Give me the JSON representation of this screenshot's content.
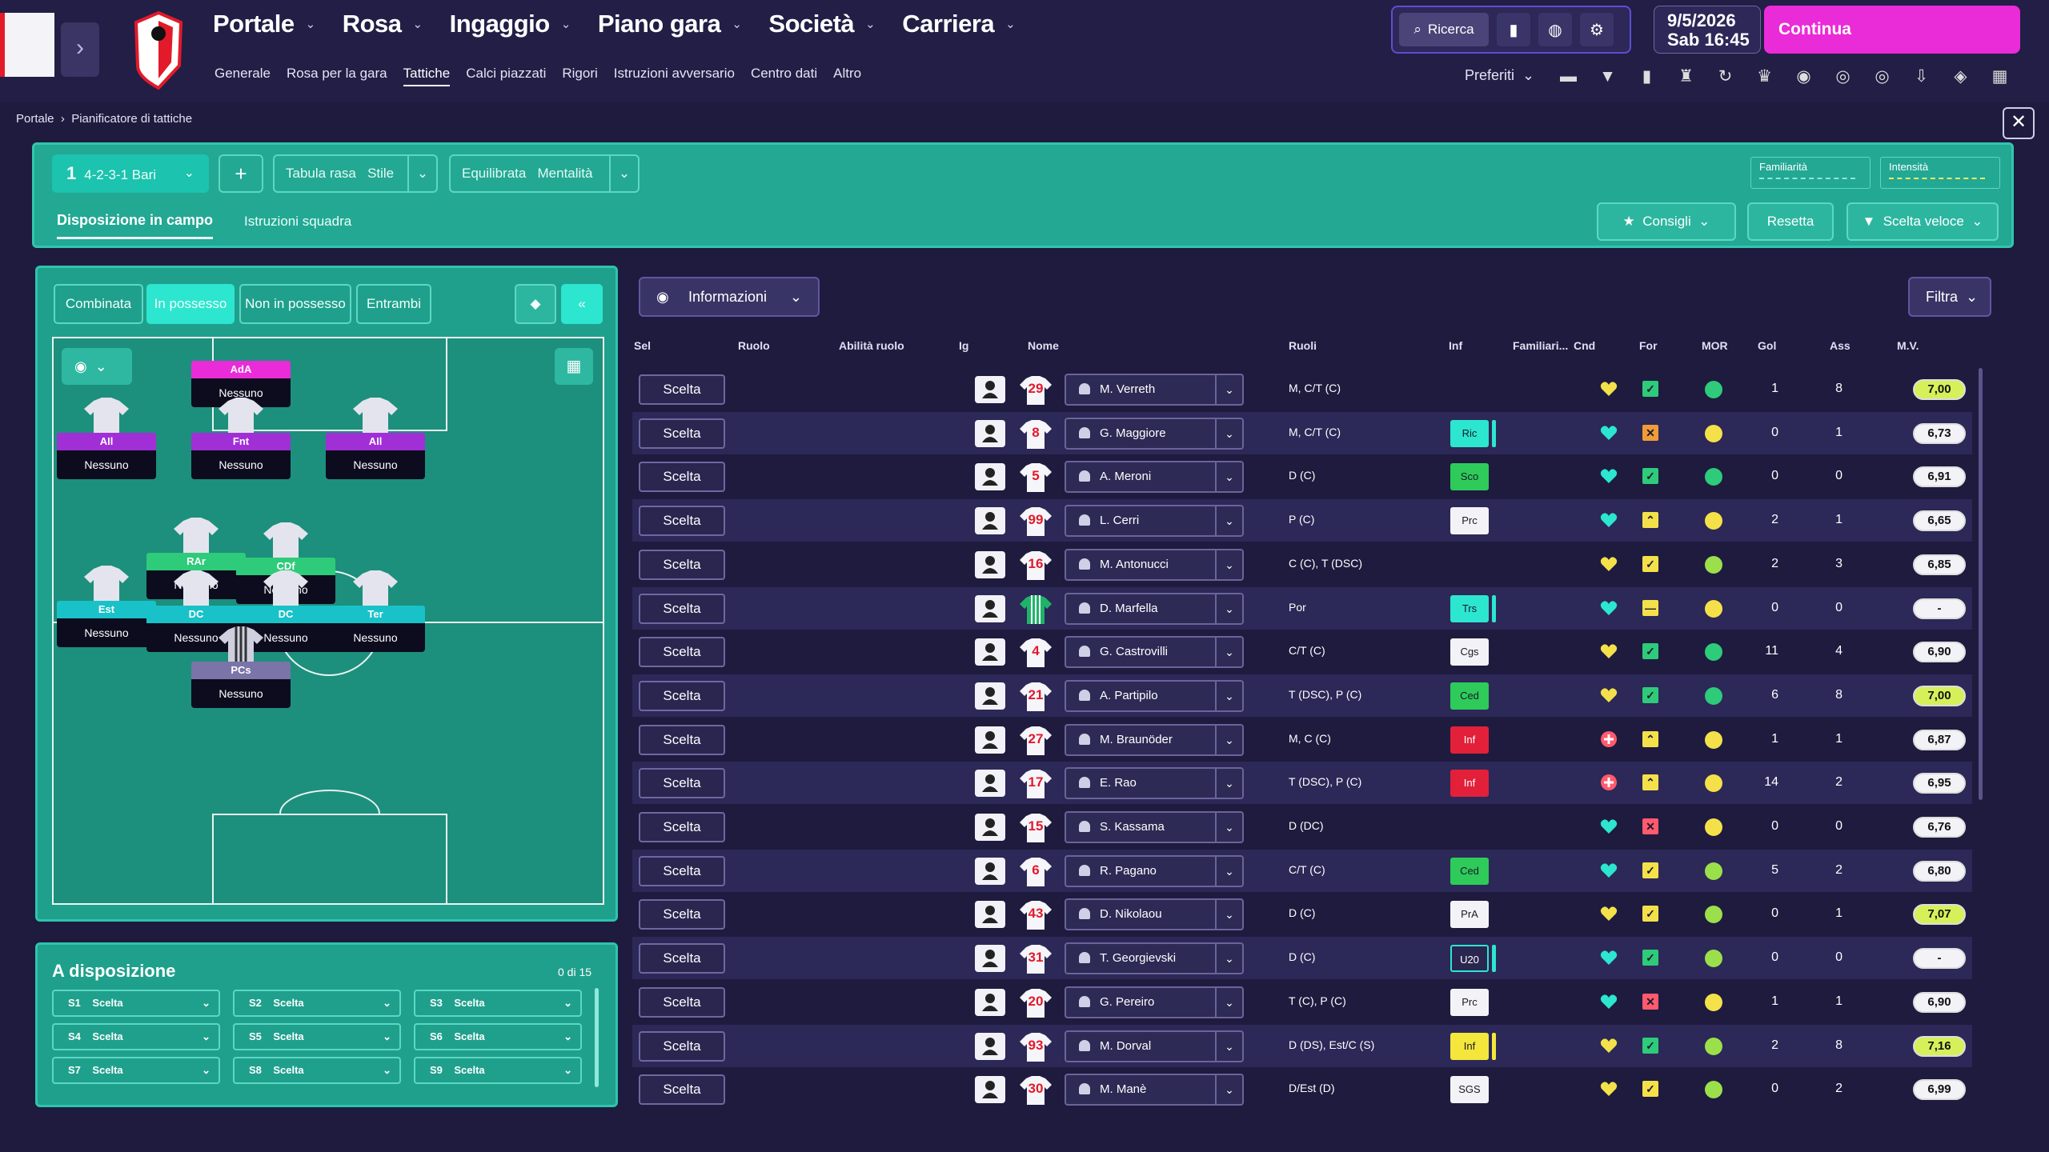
{
  "menu": [
    "Portale",
    "Rosa",
    "Ingaggio",
    "Piano gara",
    "Società",
    "Carriera"
  ],
  "submenu": [
    "Generale",
    "Rosa per la gara",
    "Tattiche",
    "Calci piazzati",
    "Rigori",
    "Istruzioni avversario",
    "Centro dati",
    "Altro"
  ],
  "submenu_active": "Tattiche",
  "toolbar": {
    "search": "Ricerca",
    "date": "9/5/2026",
    "day_time": "Sab  16:45",
    "continue": "Continua",
    "favorites": "Preferiti"
  },
  "breadcrumb": {
    "root": "Portale",
    "current": "Pianificatore di tattiche"
  },
  "tactic": {
    "number": "1",
    "name": "4-2-3-1 Bari",
    "style_a": "Tabula rasa",
    "style_b": "Stile",
    "ment_a": "Equilibrata",
    "ment_b": "Mentalità",
    "familiarity": "Familiarità",
    "intensity": "Intensità"
  },
  "tabs": {
    "disp": "Disposizione in campo",
    "istr": "Istruzioni squadra",
    "cons": "Consigli",
    "reset": "Resetta",
    "quick": "Scelta veloce"
  },
  "modes": [
    "Combinata",
    "In possesso",
    "Non in possesso",
    "Entrambi"
  ],
  "pitch": [
    {
      "role": "AdA",
      "who": "Nessuno",
      "color": "#ea2bd8"
    },
    {
      "role": "AIl",
      "who": "Nessuno",
      "color": "#a12fd6"
    },
    {
      "role": "Fnt",
      "who": "Nessuno",
      "color": "#a12fd6"
    },
    {
      "role": "AIl",
      "who": "Nessuno",
      "color": "#a12fd6"
    },
    {
      "role": "RAr",
      "who": "Nessuno",
      "color": "#2ecb7a"
    },
    {
      "role": "CDf",
      "who": "Nessuno",
      "color": "#2ecb7a"
    },
    {
      "role": "Est",
      "who": "Nessuno",
      "color": "#18c2c8"
    },
    {
      "role": "DC",
      "who": "Nessuno",
      "color": "#18c2c8"
    },
    {
      "role": "DC",
      "who": "Nessuno",
      "color": "#18c2c8"
    },
    {
      "role": "Ter",
      "who": "Nessuno",
      "color": "#18c2c8"
    },
    {
      "role": "PCs",
      "who": "Nessuno",
      "color": "#7a74a8"
    }
  ],
  "bench": {
    "title": "A disposizione",
    "count": "0 di 15",
    "slots": [
      {
        "id": "S1",
        "val": "Scelta"
      },
      {
        "id": "S2",
        "val": "Scelta"
      },
      {
        "id": "S3",
        "val": "Scelta"
      },
      {
        "id": "S4",
        "val": "Scelta"
      },
      {
        "id": "S5",
        "val": "Scelta"
      },
      {
        "id": "S6",
        "val": "Scelta"
      },
      {
        "id": "S7",
        "val": "Scelta"
      },
      {
        "id": "S8",
        "val": "Scelta"
      },
      {
        "id": "S9",
        "val": "Scelta"
      }
    ]
  },
  "list": {
    "info": "Informazioni",
    "filter": "Filtra",
    "headers": [
      "Sel",
      "Ruolo",
      "Abilità ruolo",
      "Ig",
      "Nome",
      "Ruoli",
      "Inf",
      "Familiari...",
      "Cnd",
      "For",
      "MOR",
      "Gol",
      "Ass",
      "M.V."
    ],
    "rows": [
      {
        "sel": "Scelta",
        "num": "29",
        "name": "M. Verreth",
        "roles": "M, C/T (C)",
        "inf": "",
        "infc": "",
        "cnd": "#f4e14a",
        "for": "ok",
        "mor": "#2ecb7a",
        "gol": "1",
        "ass": "8",
        "mv": "7,00",
        "mvc": "#d6f05a"
      },
      {
        "sel": "Scelta",
        "num": "8",
        "name": "G. Maggiore",
        "roles": "M, C/T (C)",
        "inf": "Ric",
        "infc": "#2ce6cf",
        "cnd": "#2ce6cf",
        "for": "warn",
        "mor": "#f4e14a",
        "gol": "0",
        "ass": "1",
        "mv": "6,73",
        "mvc": "#f3f3f7"
      },
      {
        "sel": "Scelta",
        "num": "5",
        "name": "A. Meroni",
        "roles": "D (C)",
        "inf": "Sco",
        "infc": "#2ecb5a",
        "cnd": "#2ce6cf",
        "for": "ok",
        "mor": "#2ecb7a",
        "gol": "0",
        "ass": "0",
        "mv": "6,91",
        "mvc": "#f3f3f7"
      },
      {
        "sel": "Scelta",
        "num": "99",
        "name": "L. Cerri",
        "roles": "P (C)",
        "inf": "Prc",
        "infc": "#f3f3f7",
        "cnd": "#2ce6cf",
        "for": "up",
        "mor": "#f4e14a",
        "gol": "2",
        "ass": "1",
        "mv": "6,65",
        "mvc": "#f3f3f7"
      },
      {
        "sel": "Scelta",
        "num": "16",
        "name": "M. Antonucci",
        "roles": "C (C), T (DSC)",
        "inf": "",
        "infc": "",
        "cnd": "#f4e14a",
        "for": "mid",
        "mor": "#9be04a",
        "gol": "2",
        "ass": "3",
        "mv": "6,85",
        "mvc": "#f3f3f7"
      },
      {
        "sel": "Scelta",
        "num": "",
        "name": "D. Marfella",
        "roles": "Por",
        "inf": "Trs",
        "infc": "#2ce6cf",
        "cnd": "#2ce6cf",
        "for": "flat",
        "mor": "#f4e14a",
        "gol": "0",
        "ass": "0",
        "mv": "-",
        "mvc": "#f3f3f7"
      },
      {
        "sel": "Scelta",
        "num": "4",
        "name": "G. Castrovilli",
        "roles": "C/T (C)",
        "inf": "Cgs",
        "infc": "#f3f3f7",
        "cnd": "#f4e14a",
        "for": "ok",
        "mor": "#2ecb7a",
        "gol": "11",
        "ass": "4",
        "mv": "6,90",
        "mvc": "#f3f3f7"
      },
      {
        "sel": "Scelta",
        "num": "21",
        "name": "A. Partipilo",
        "roles": "T (DSC), P (C)",
        "inf": "Ced",
        "infc": "#2ecb5a",
        "cnd": "#f4e14a",
        "for": "ok",
        "mor": "#2ecb7a",
        "gol": "6",
        "ass": "8",
        "mv": "7,00",
        "mvc": "#d6f05a"
      },
      {
        "sel": "Scelta",
        "num": "27",
        "name": "M. Braunöder",
        "roles": "M, C (C)",
        "inf": "Inf",
        "infc": "#e2203a",
        "cnd": "#ff5a6e",
        "for": "up",
        "mor": "#f4e14a",
        "gol": "1",
        "ass": "1",
        "mv": "6,87",
        "mvc": "#f3f3f7"
      },
      {
        "sel": "Scelta",
        "num": "17",
        "name": "E. Rao",
        "roles": "T (DSC), P (C)",
        "inf": "Inf",
        "infc": "#e2203a",
        "cnd": "#ff5a6e",
        "for": "up",
        "mor": "#f4e14a",
        "gol": "14",
        "ass": "2",
        "mv": "6,95",
        "mvc": "#f3f3f7"
      },
      {
        "sel": "Scelta",
        "num": "15",
        "name": "S. Kassama",
        "roles": "D (DC)",
        "inf": "",
        "infc": "",
        "cnd": "#2ce6cf",
        "for": "bad",
        "mor": "#f4e14a",
        "gol": "0",
        "ass": "0",
        "mv": "6,76",
        "mvc": "#f3f3f7"
      },
      {
        "sel": "Scelta",
        "num": "6",
        "name": "R. Pagano",
        "roles": "C/T (C)",
        "inf": "Ced",
        "infc": "#2ecb5a",
        "cnd": "#2ce6cf",
        "for": "mid",
        "mor": "#9be04a",
        "gol": "5",
        "ass": "2",
        "mv": "6,80",
        "mvc": "#f3f3f7"
      },
      {
        "sel": "Scelta",
        "num": "43",
        "name": "D. Nikolaou",
        "roles": "D (C)",
        "inf": "PrA",
        "infc": "#f3f3f7",
        "cnd": "#f4e14a",
        "for": "mid",
        "mor": "#9be04a",
        "gol": "0",
        "ass": "1",
        "mv": "7,07",
        "mvc": "#d6f05a"
      },
      {
        "sel": "Scelta",
        "num": "31",
        "name": "T. Georgievski",
        "roles": "D (C)",
        "inf": "U20",
        "infc": "#2a2650",
        "cnd": "#2ce6cf",
        "for": "ok",
        "mor": "#9be04a",
        "gol": "0",
        "ass": "0",
        "mv": "-",
        "mvc": "#f3f3f7"
      },
      {
        "sel": "Scelta",
        "num": "20",
        "name": "G. Pereiro",
        "roles": "T (C), P (C)",
        "inf": "Prc",
        "infc": "#f3f3f7",
        "cnd": "#2ce6cf",
        "for": "bad",
        "mor": "#f4e14a",
        "gol": "1",
        "ass": "1",
        "mv": "6,90",
        "mvc": "#f3f3f7"
      },
      {
        "sel": "Scelta",
        "num": "93",
        "name": "M. Dorval",
        "roles": "D (DS), Est/C (S)",
        "inf": "Inf",
        "infc": "#f4e63a",
        "cnd": "#f4e14a",
        "for": "ok",
        "mor": "#9be04a",
        "gol": "2",
        "ass": "8",
        "mv": "7,16",
        "mvc": "#d6f05a"
      },
      {
        "sel": "Scelta",
        "num": "30",
        "name": "M. Manè",
        "roles": "D/Est (D)",
        "inf": "SGS",
        "infc": "#f3f3f7",
        "cnd": "#f4e14a",
        "for": "mid",
        "mor": "#9be04a",
        "gol": "0",
        "ass": "2",
        "mv": "6,99",
        "mvc": "#f3f3f7"
      }
    ]
  }
}
